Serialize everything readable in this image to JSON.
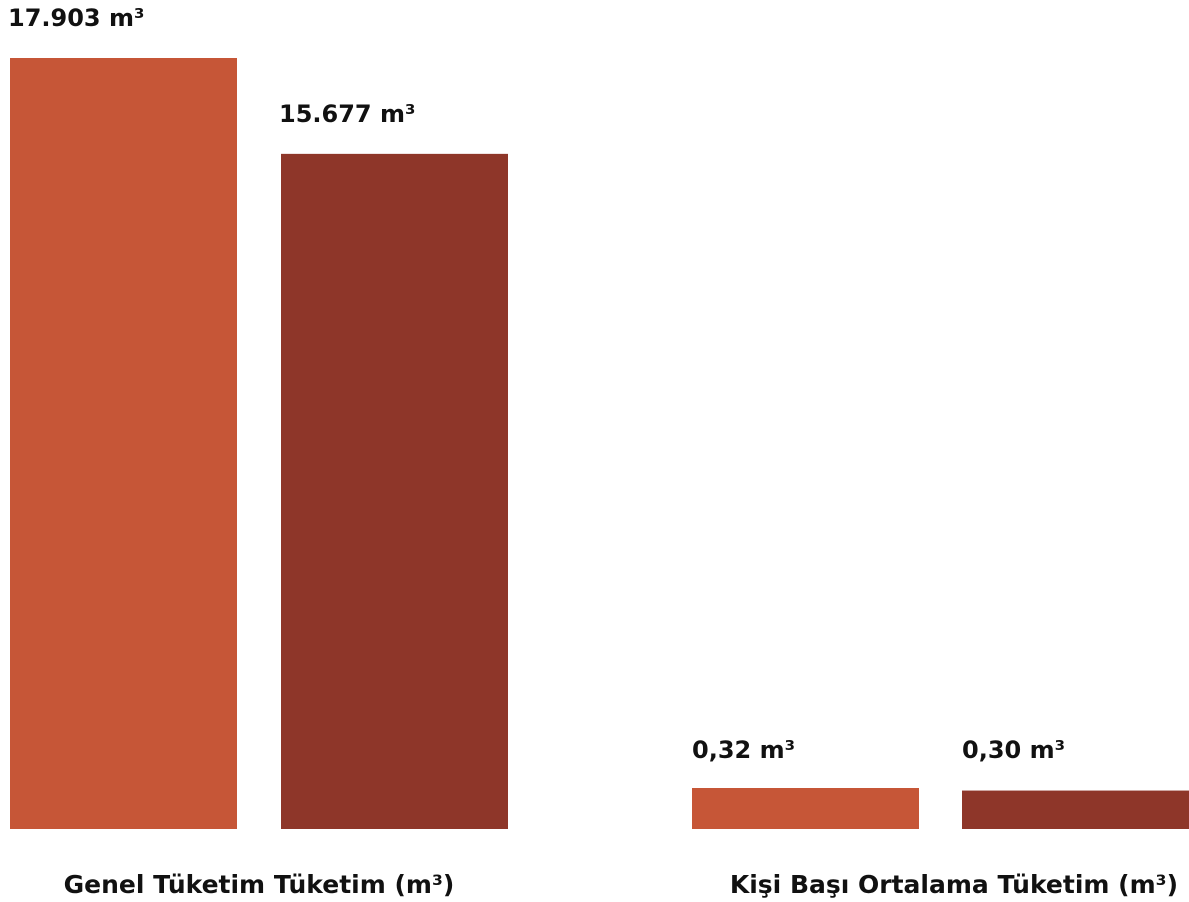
{
  "chart_data": [
    {
      "type": "bar",
      "categories": [
        "Genel Tüketim Tüketim (m³)"
      ],
      "series": [
        {
          "values": [
            17903
          ],
          "color": "#C65637"
        },
        {
          "values": [
            15677
          ],
          "color": "#8E3629"
        }
      ],
      "data_labels": [
        "17.903 m³",
        "15.677 m³"
      ],
      "ylim": [
        0,
        17903
      ]
    },
    {
      "type": "bar",
      "categories": [
        "Kişi Başı Ortalama Tüketim (m³)"
      ],
      "series": [
        {
          "values": [
            0.32
          ],
          "color": "#C65637"
        },
        {
          "values": [
            0.3
          ],
          "color": "#8E3629"
        }
      ],
      "data_labels": [
        "0,32 m³",
        "0,30 m³"
      ]
    }
  ]
}
